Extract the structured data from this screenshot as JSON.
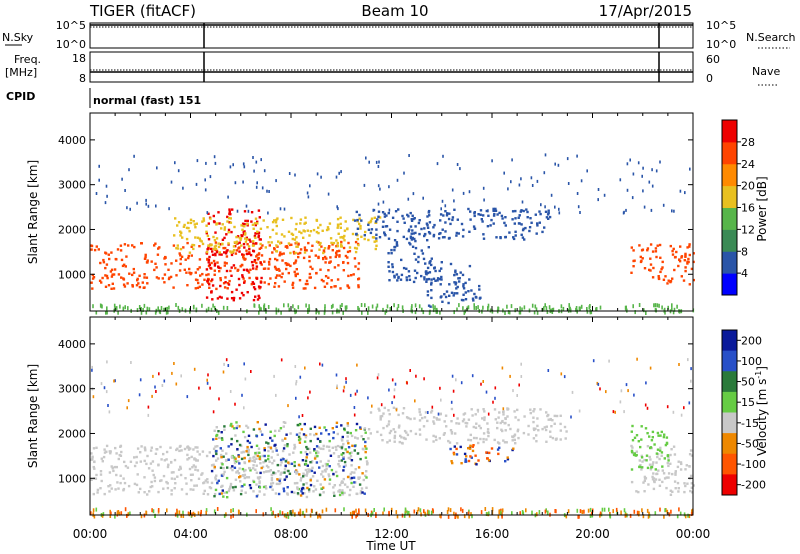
{
  "header": {
    "station": "TIGER (fitACF)",
    "beam": "Beam 10",
    "date": "17/Apr/2015"
  },
  "chart_data": [
    {
      "type": "line",
      "panel": "noise",
      "left_label": "N.Sky",
      "right_label": "N.Search",
      "left_ticks": [
        "10^5",
        "10^0"
      ],
      "right_ticks": [
        "10^5",
        "10^0"
      ],
      "markers_x": [
        4.6,
        21.7
      ]
    },
    {
      "type": "line",
      "panel": "frequency",
      "left_label_top": "Freq.",
      "left_label_bottom": "[MHz]",
      "right_label": "Nave",
      "left_ticks": [
        "18",
        "8"
      ],
      "right_ticks": [
        "60",
        "0"
      ],
      "markers_x": [
        4.6,
        21.7
      ]
    },
    {
      "type": "table",
      "panel": "cpid",
      "label": "CPID",
      "text": "normal (fast) 151"
    },
    {
      "type": "heatmap",
      "panel": "power",
      "ylabel": "Slant Range [km]",
      "ylim": [
        180,
        4600
      ],
      "yticks": [
        1000,
        2000,
        3000,
        4000
      ],
      "xlim": [
        0,
        24
      ],
      "colorbar": {
        "label": "Power [dB]",
        "ticks": [
          "4",
          "8",
          "12",
          "16",
          "20",
          "24",
          "28"
        ],
        "range": [
          0,
          30
        ],
        "colors": [
          "#0000ff",
          "#2a55a8",
          "#3a8a55",
          "#57b54a",
          "#e8c020",
          "#ff8a00",
          "#ff4400",
          "#ee0000"
        ]
      },
      "regions": [
        {
          "t0": 0.0,
          "t1": 10.7,
          "r0": 700,
          "r1": 1750,
          "level": "high"
        },
        {
          "t0": 4.6,
          "t1": 6.8,
          "r0": 420,
          "r1": 2500,
          "level": "peak"
        },
        {
          "t0": 3.3,
          "t1": 11.5,
          "r0": 1500,
          "r1": 2300,
          "level": "mid"
        },
        {
          "t0": 10.5,
          "t1": 18.3,
          "r0": 1800,
          "r1": 2500,
          "level": "low"
        },
        {
          "t0": 11.8,
          "t1": 13.6,
          "r0": 800,
          "r1": 2000,
          "level": "low"
        },
        {
          "t0": 13.3,
          "t1": 15.5,
          "r0": 300,
          "r1": 1300,
          "level": "low"
        },
        {
          "t0": 21.5,
          "t1": 24.0,
          "r0": 800,
          "r1": 1700,
          "level": "high"
        }
      ]
    },
    {
      "type": "heatmap",
      "panel": "velocity",
      "ylabel": "Slant Range [km]",
      "xlabel": "Time UT",
      "ylim": [
        180,
        4600
      ],
      "yticks": [
        1000,
        2000,
        3000,
        4000
      ],
      "xlim": [
        0,
        24
      ],
      "xticks": [
        "00:00",
        "04:00",
        "08:00",
        "12:00",
        "16:00",
        "20:00",
        "00:00"
      ],
      "colorbar": {
        "label": "Velocity [m s",
        "label_sup": "-1",
        "label_end": "]",
        "ticks": [
          "200",
          "100",
          "50",
          "15",
          "-15",
          "-50",
          "-100",
          "-200"
        ],
        "colors": [
          "#0a1a9a",
          "#2850c8",
          "#2a7a3a",
          "#66cc44",
          "#c8c8c8",
          "#ee8800",
          "#ff5500",
          "#ee0000"
        ]
      },
      "regions": [
        {
          "t0": 0.0,
          "t1": 11.0,
          "r0": 650,
          "r1": 1750,
          "level": "ground"
        },
        {
          "t0": 4.8,
          "t1": 11.0,
          "r0": 600,
          "r1": 2300,
          "level": "mixed"
        },
        {
          "t0": 11.0,
          "t1": 19.0,
          "r0": 1800,
          "r1": 2600,
          "level": "ground"
        },
        {
          "t0": 14.3,
          "t1": 16.8,
          "r0": 1300,
          "r1": 1800,
          "level": "east"
        },
        {
          "t0": 21.5,
          "t1": 24.0,
          "r0": 650,
          "r1": 1750,
          "level": "ground"
        },
        {
          "t0": 21.5,
          "t1": 23.0,
          "r0": 1200,
          "r1": 2200,
          "level": "green"
        }
      ]
    }
  ]
}
